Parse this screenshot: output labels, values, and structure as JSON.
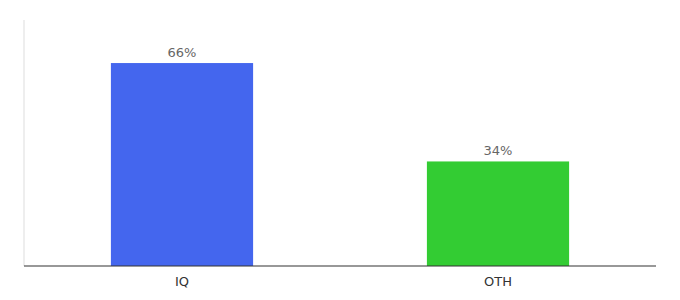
{
  "chart_data": {
    "type": "bar",
    "categories": [
      "IQ",
      "OTH"
    ],
    "values": [
      66,
      34
    ],
    "value_labels": [
      "66%",
      "34%"
    ],
    "colors": [
      "#4466ee",
      "#33cc33"
    ],
    "ylim": [
      0,
      80
    ],
    "data_labels": true,
    "tick_labels": "x"
  }
}
